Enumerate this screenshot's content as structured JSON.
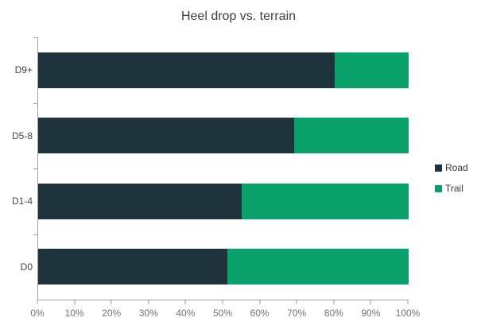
{
  "chart_data": {
    "type": "bar",
    "orientation": "horizontal",
    "stacked": true,
    "stacking": "percent",
    "title": "Heel drop vs. terrain",
    "categories": [
      "D9+",
      "D5-8",
      "D1-4",
      "D0"
    ],
    "series": [
      {
        "name": "Road",
        "color": "#1e323c",
        "values": [
          80,
          69,
          55,
          51
        ]
      },
      {
        "name": "Trail",
        "color": "#07a169",
        "values": [
          20,
          31,
          45,
          49
        ]
      }
    ],
    "xlabel": "",
    "ylabel": "",
    "xlim": [
      0,
      100
    ],
    "x_tick_labels": [
      "0%",
      "10%",
      "20%",
      "30%",
      "40%",
      "50%",
      "60%",
      "70%",
      "80%",
      "90%",
      "100%"
    ],
    "grid": false,
    "legend_position": "right"
  },
  "style": {
    "background_color": "#ffffff",
    "axis_line_color": "#9e9e9e",
    "tick_label_color": "#737373",
    "category_label_color": "#474747",
    "title_color": "#3f3f3f",
    "legend_text_color": "#2f3a42"
  }
}
